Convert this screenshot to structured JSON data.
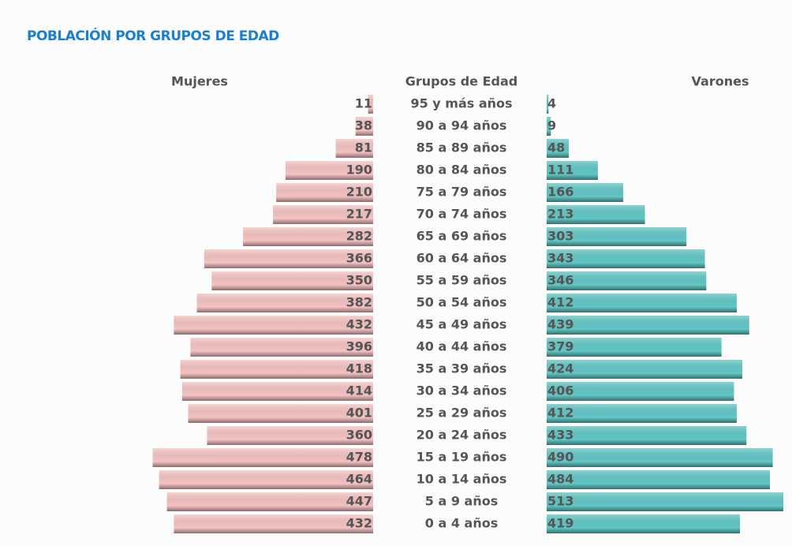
{
  "chart_data": {
    "type": "population-pyramid",
    "title": "POBLACIÓN POR GRUPOS DE EDAD",
    "category_label": "Grupos de Edad",
    "categories": [
      "95 y más años",
      "90 a 94 años",
      "85 a 89 años",
      "80 a 84 años",
      "75 a 79 años",
      "70 a 74 años",
      "65 a 69 años",
      "60 a 64 años",
      "55 a 59 años",
      "50 a 54 años",
      "45 a 49 años",
      "40 a 44 años",
      "35 a 39 años",
      "30 a 34 años",
      "25 a 29 años",
      "20 a 24 años",
      "15 a 19 años",
      "10 a 14 años",
      "5 a 9 años",
      "0 a 4 años"
    ],
    "series": [
      {
        "name": "Mujeres",
        "color": "#f7c4c4",
        "values": [
          11,
          38,
          81,
          190,
          210,
          217,
          282,
          366,
          350,
          382,
          432,
          396,
          418,
          414,
          401,
          360,
          478,
          464,
          447,
          432
        ]
      },
      {
        "name": "Varones",
        "color": "#62c8c6",
        "values": [
          4,
          9,
          48,
          111,
          166,
          213,
          303,
          343,
          346,
          412,
          439,
          379,
          424,
          406,
          412,
          433,
          490,
          484,
          513,
          419
        ]
      }
    ]
  }
}
